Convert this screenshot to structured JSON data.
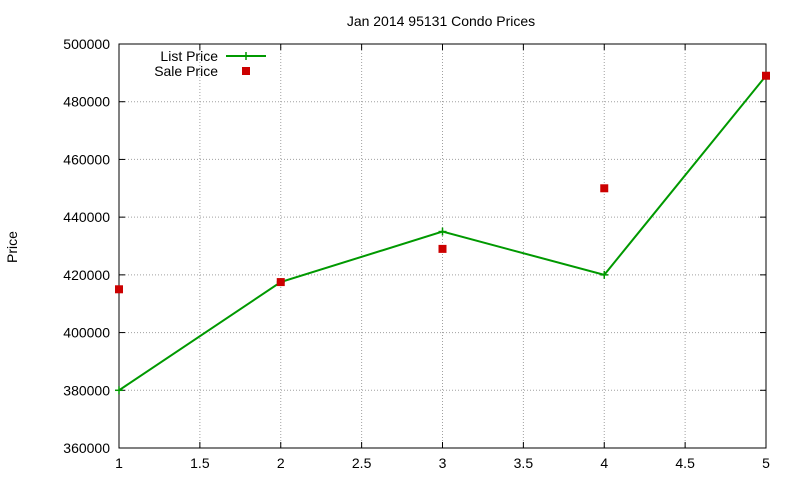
{
  "chart_data": {
    "type": "line",
    "title": "Jan 2014 95131 Condo Prices",
    "xlabel": "",
    "ylabel": "Price",
    "xlim": [
      1,
      5
    ],
    "ylim": [
      360000,
      500000
    ],
    "x_ticks": [
      1,
      1.5,
      2,
      2.5,
      3,
      3.5,
      4,
      4.5,
      5
    ],
    "y_ticks": [
      360000,
      380000,
      400000,
      420000,
      440000,
      460000,
      480000,
      500000
    ],
    "x_tick_labels": [
      "1",
      "1.5",
      "2",
      "2.5",
      "3",
      "3.5",
      "4",
      "4.5",
      "5"
    ],
    "y_tick_labels": [
      "360000",
      "380000",
      "400000",
      "420000",
      "440000",
      "460000",
      "480000",
      "500000"
    ],
    "grid": true,
    "legend_position": "top-left",
    "series": [
      {
        "name": "List Price",
        "style": "linespoints",
        "marker": "plus",
        "color": "#009900",
        "points": [
          {
            "x": 1,
            "y": 380000
          },
          {
            "x": 2,
            "y": 417500
          },
          {
            "x": 3,
            "y": 435000
          },
          {
            "x": 4,
            "y": 420000
          },
          {
            "x": 5,
            "y": 489000
          }
        ]
      },
      {
        "name": "Sale Price",
        "style": "points",
        "marker": "square",
        "color": "#cc0000",
        "points": [
          {
            "x": 1,
            "y": 415000
          },
          {
            "x": 2,
            "y": 417500
          },
          {
            "x": 3,
            "y": 429000
          },
          {
            "x": 4,
            "y": 450000
          },
          {
            "x": 5,
            "y": 489000
          }
        ]
      }
    ]
  }
}
